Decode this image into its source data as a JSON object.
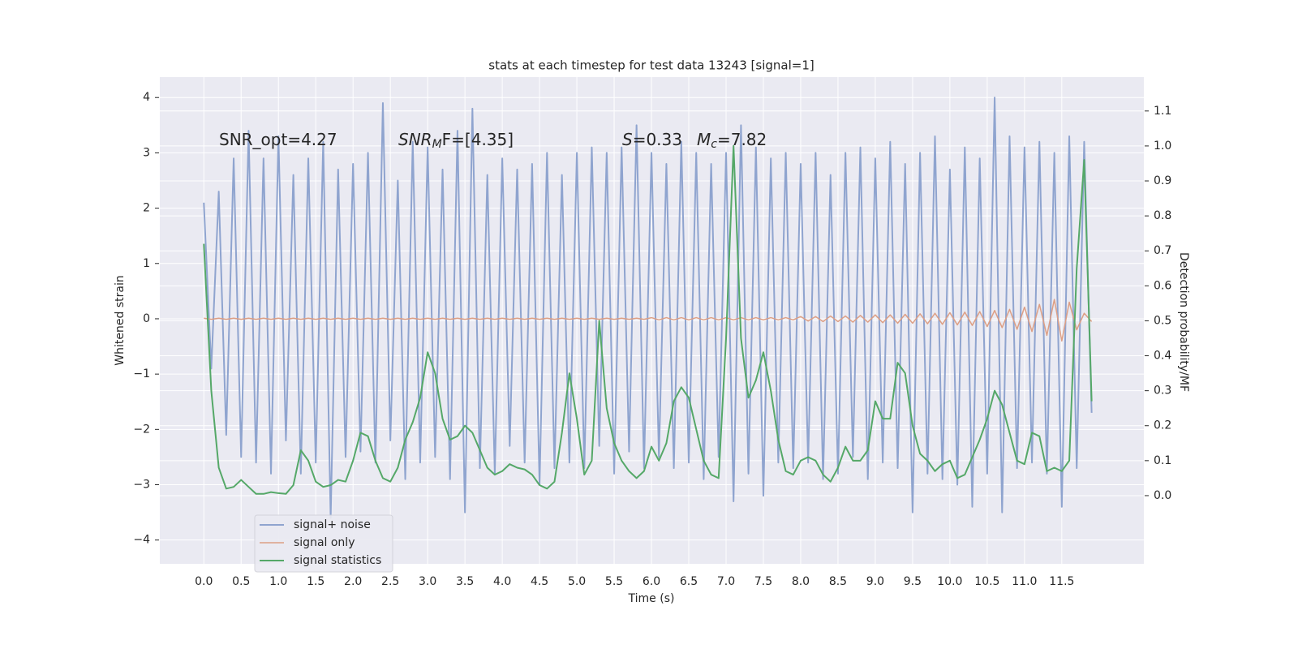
{
  "chart_data": {
    "type": "line",
    "title": "stats at each timestep for test data 13243 [signal=1]",
    "xlabel": "Time (s)",
    "ylabel": "Whitened strain",
    "y2label": "Detection probability/MF",
    "grid": true,
    "legend": "lower left",
    "background": "#eaeaf2",
    "xlim": [
      -0.59,
      12.6
    ],
    "ylim": [
      -4.43,
      4.37
    ],
    "y2lim": [
      -0.195,
      1.197
    ],
    "xticks": [
      {
        "value": 0,
        "label": "0.0"
      },
      0.5,
      {
        "value": 1,
        "label": "1.0"
      },
      1.5,
      {
        "value": 2,
        "label": "2.0"
      },
      2.5,
      {
        "value": 3,
        "label": "3.0"
      },
      3.5,
      {
        "value": 4,
        "label": "4.0"
      },
      4.5,
      {
        "value": 5,
        "label": "5.0"
      },
      5.5,
      {
        "value": 6,
        "label": "6.0"
      },
      6.5,
      {
        "value": 7,
        "label": "7.0"
      },
      7.5,
      {
        "value": 8,
        "label": "8.0"
      },
      8.5,
      {
        "value": 9,
        "label": "9.0"
      },
      9.5,
      {
        "value": 10,
        "label": "10.0"
      },
      10.5,
      {
        "value": 11,
        "label": "11.0"
      },
      11.5
    ],
    "yticks": [
      {
        "value": -4,
        "label": "−4"
      },
      {
        "value": -3,
        "label": "−3"
      },
      {
        "value": -2,
        "label": "−2"
      },
      {
        "value": -1,
        "label": "−1"
      },
      0,
      1,
      2,
      3,
      4
    ],
    "y2ticks": [
      {
        "value": 0,
        "label": "0.0"
      },
      0.1,
      0.2,
      0.3,
      0.4,
      0.5,
      0.6,
      0.7,
      0.8,
      0.9,
      {
        "value": 1,
        "label": "1.0"
      },
      1.1
    ],
    "annotations": [
      {
        "parts": [
          {
            "text": "SNR_opt=4.27"
          }
        ]
      },
      {
        "parts": [
          {
            "text": "SNR",
            "italic": true
          },
          {
            "text": "M",
            "italic": true,
            "sub": true
          },
          {
            "text": "F=[4.35]"
          }
        ]
      },
      {
        "parts": [
          {
            "text": "S",
            "italic": true
          },
          {
            "text": "=0.33"
          }
        ]
      },
      {
        "parts": [
          {
            "text": "M",
            "italic": true
          },
          {
            "text": "c",
            "italic": true,
            "sub": true
          },
          {
            "text": "=7.82"
          }
        ]
      }
    ],
    "x": [
      0.0,
      0.1,
      0.2,
      0.3,
      0.4,
      0.5,
      0.6,
      0.7,
      0.8,
      0.9,
      1.0,
      1.1,
      1.2,
      1.3,
      1.4,
      1.5,
      1.6,
      1.7,
      1.8,
      1.9,
      2.0,
      2.1,
      2.2,
      2.3,
      2.4,
      2.5,
      2.6,
      2.7,
      2.8,
      2.9,
      3.0,
      3.1,
      3.2,
      3.3,
      3.4,
      3.5,
      3.6,
      3.7,
      3.8,
      3.9,
      4.0,
      4.1,
      4.2,
      4.3,
      4.4,
      4.5,
      4.6,
      4.7,
      4.8,
      4.9,
      5.0,
      5.1,
      5.2,
      5.3,
      5.4,
      5.5,
      5.6,
      5.7,
      5.8,
      5.9,
      6.0,
      6.1,
      6.2,
      6.3,
      6.4,
      6.5,
      6.6,
      6.7,
      6.8,
      6.9,
      7.0,
      7.1,
      7.2,
      7.3,
      7.4,
      7.5,
      7.6,
      7.7,
      7.8,
      7.9,
      8.0,
      8.1,
      8.2,
      8.3,
      8.4,
      8.5,
      8.6,
      8.7,
      8.8,
      8.9,
      9.0,
      9.1,
      9.2,
      9.3,
      9.4,
      9.5,
      9.6,
      9.7,
      9.8,
      9.9,
      10.0,
      10.1,
      10.2,
      10.3,
      10.4,
      10.5,
      10.6,
      10.7,
      10.8,
      10.9,
      11.0,
      11.1,
      11.2,
      11.3,
      11.4,
      11.5,
      11.6,
      11.7,
      11.8,
      11.9
    ],
    "series": [
      {
        "name": "signal+ noise",
        "color": "#8fa4cf",
        "width": 2,
        "values": [
          2.1,
          -0.9,
          2.3,
          -2.1,
          2.9,
          -2.5,
          3.4,
          -2.6,
          2.9,
          -2.8,
          3.3,
          -2.2,
          2.6,
          -2.8,
          2.9,
          -2.6,
          3.2,
          -3.6,
          2.7,
          -2.5,
          2.8,
          -2.4,
          3.0,
          -2.6,
          3.9,
          -2.2,
          2.5,
          -2.9,
          3.2,
          -2.6,
          3.1,
          -2.5,
          2.7,
          -2.9,
          3.4,
          -3.5,
          3.8,
          -2.7,
          2.6,
          -2.8,
          2.9,
          -2.3,
          2.7,
          -2.6,
          2.8,
          -3.0,
          3.0,
          -2.7,
          2.6,
          -2.6,
          3.0,
          -2.7,
          3.1,
          -2.3,
          3.0,
          -2.8,
          3.1,
          -2.4,
          3.5,
          -2.7,
          3.0,
          -2.5,
          2.8,
          -2.7,
          3.2,
          -2.6,
          3.0,
          -2.9,
          2.8,
          -2.5,
          3.0,
          -3.3,
          3.5,
          -2.8,
          3.1,
          -3.2,
          2.9,
          -2.6,
          3.0,
          -2.7,
          2.8,
          -2.6,
          3.0,
          -2.9,
          2.6,
          -2.8,
          3.0,
          -2.5,
          3.1,
          -2.9,
          2.9,
          -2.6,
          3.2,
          -2.7,
          2.8,
          -3.5,
          3.0,
          -2.8,
          3.3,
          -2.9,
          2.7,
          -3.0,
          3.1,
          -3.4,
          2.9,
          -2.8,
          4.0,
          -3.5,
          3.3,
          -2.7,
          3.1,
          -2.6,
          3.2,
          -2.8,
          3.0,
          -3.4,
          3.3,
          -2.7,
          3.2,
          -1.7
        ]
      },
      {
        "name": "signal only",
        "color": "#dd9f85",
        "width": 1.5,
        "values": [
          0.01,
          -0.01,
          0.01,
          -0.01,
          0.01,
          -0.01,
          0.01,
          -0.01,
          0.01,
          -0.01,
          0.01,
          -0.01,
          0.01,
          -0.01,
          0.01,
          -0.01,
          0.01,
          -0.01,
          0.01,
          -0.01,
          0.01,
          -0.01,
          0.01,
          -0.01,
          0.01,
          -0.01,
          0.01,
          -0.01,
          0.01,
          -0.01,
          0.01,
          -0.01,
          0.01,
          -0.01,
          0.01,
          -0.01,
          0.01,
          -0.01,
          0.01,
          -0.01,
          0.01,
          -0.01,
          0.01,
          -0.01,
          0.01,
          -0.01,
          0.01,
          -0.01,
          0.01,
          -0.01,
          0.01,
          -0.01,
          0.01,
          -0.01,
          0.01,
          -0.01,
          0.01,
          -0.01,
          0.01,
          -0.01,
          0.02,
          -0.02,
          0.02,
          -0.02,
          0.02,
          -0.02,
          0.02,
          -0.02,
          0.02,
          -0.02,
          0.02,
          -0.02,
          0.02,
          -0.02,
          0.02,
          -0.02,
          0.02,
          -0.02,
          0.02,
          -0.02,
          0.04,
          -0.04,
          0.04,
          -0.05,
          0.05,
          -0.05,
          0.05,
          -0.06,
          0.06,
          -0.06,
          0.07,
          -0.07,
          0.07,
          -0.08,
          0.08,
          -0.08,
          0.09,
          -0.09,
          0.1,
          -0.1,
          0.11,
          -0.11,
          0.12,
          -0.12,
          0.13,
          -0.14,
          0.15,
          -0.16,
          0.17,
          -0.19,
          0.21,
          -0.23,
          0.26,
          -0.3,
          0.35,
          -0.4,
          0.3,
          -0.2,
          0.1,
          -0.05
        ]
      },
      {
        "name": "signal statistics",
        "color": "#55a868",
        "width": 2,
        "axis": "y2",
        "values": [
          0.72,
          0.3,
          0.08,
          0.02,
          0.025,
          0.045,
          0.025,
          0.005,
          0.005,
          0.01,
          0.007,
          0.005,
          0.03,
          0.13,
          0.1,
          0.04,
          0.025,
          0.03,
          0.045,
          0.04,
          0.1,
          0.18,
          0.17,
          0.1,
          0.05,
          0.04,
          0.08,
          0.16,
          0.21,
          0.28,
          0.41,
          0.35,
          0.22,
          0.16,
          0.17,
          0.2,
          0.18,
          0.13,
          0.08,
          0.06,
          0.07,
          0.09,
          0.08,
          0.075,
          0.06,
          0.03,
          0.02,
          0.04,
          0.18,
          0.35,
          0.22,
          0.06,
          0.1,
          0.5,
          0.25,
          0.15,
          0.1,
          0.07,
          0.05,
          0.07,
          0.14,
          0.1,
          0.15,
          0.27,
          0.31,
          0.28,
          0.19,
          0.1,
          0.06,
          0.05,
          0.45,
          1.0,
          0.45,
          0.28,
          0.33,
          0.41,
          0.3,
          0.16,
          0.07,
          0.06,
          0.1,
          0.11,
          0.1,
          0.06,
          0.04,
          0.08,
          0.14,
          0.1,
          0.1,
          0.13,
          0.27,
          0.22,
          0.22,
          0.38,
          0.35,
          0.2,
          0.12,
          0.1,
          0.07,
          0.09,
          0.1,
          0.05,
          0.06,
          0.11,
          0.16,
          0.22,
          0.3,
          0.26,
          0.18,
          0.1,
          0.09,
          0.18,
          0.17,
          0.07,
          0.08,
          0.07,
          0.1,
          0.65,
          0.96,
          0.27
        ]
      }
    ]
  }
}
